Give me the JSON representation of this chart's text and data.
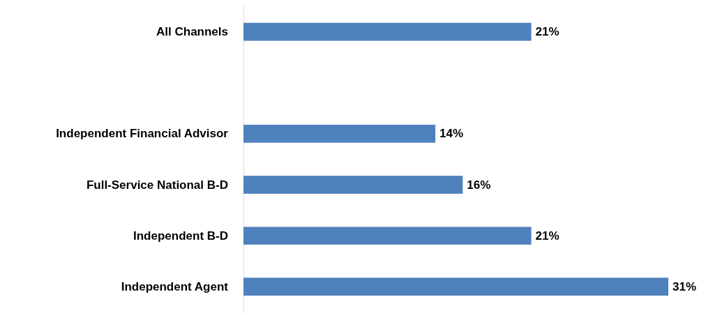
{
  "chart_data": {
    "type": "bar",
    "orientation": "horizontal",
    "categories": [
      "All Channels",
      null,
      "Independent Financial Advisor",
      "Full-Service National B-D",
      "Independent B-D",
      "Independent Agent"
    ],
    "values": [
      21,
      null,
      14,
      16,
      21,
      31
    ],
    "value_labels": [
      "21%",
      null,
      "14%",
      "16%",
      "21%",
      "31%"
    ],
    "color": "#4f81bd"
  }
}
